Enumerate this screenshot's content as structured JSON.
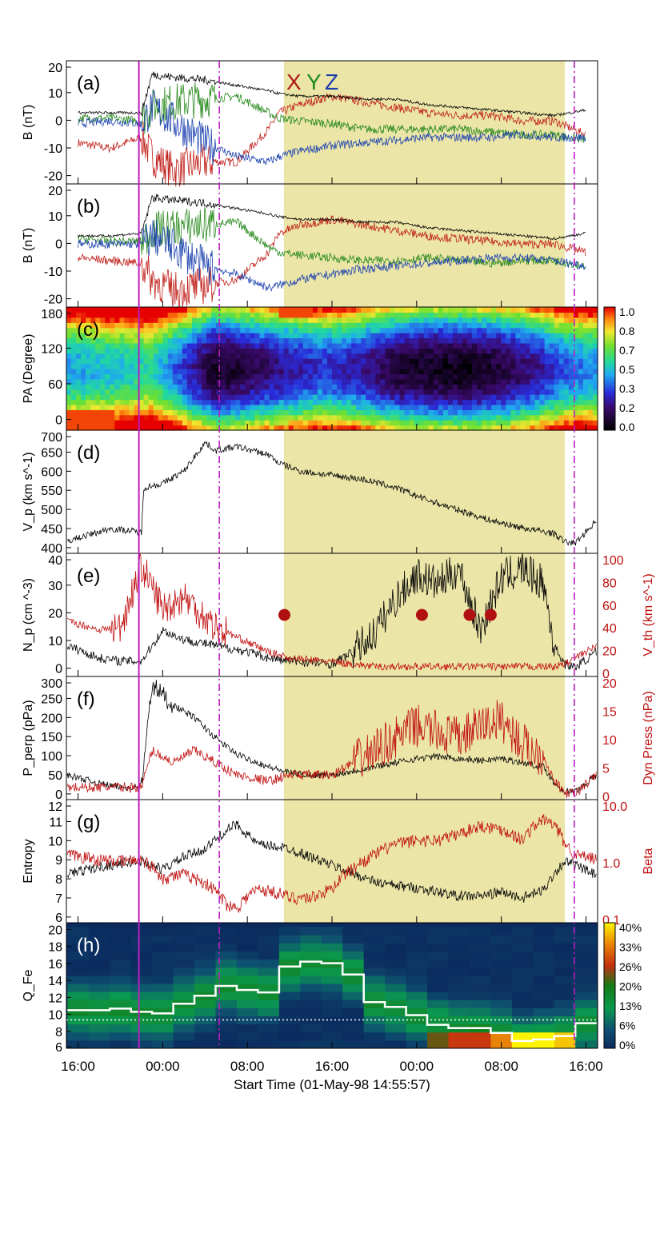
{
  "figure": {
    "header_letters": [
      {
        "text": "X",
        "color": "#b01818"
      },
      {
        "text": "Y",
        "color": "#1e8a1e"
      },
      {
        "text": "Z",
        "color": "#1a3caa"
      }
    ],
    "x_ticks": [
      "16:00",
      "00:00",
      "08:00",
      "16:00",
      "00:00",
      "08:00",
      "16:00"
    ],
    "x_label": "Start Time (01-May-98 14:55:57)",
    "colors": {
      "shade": "#ebe5a8",
      "magenta": "#b81fc2",
      "red_axis": "#c01010",
      "black": "#000000",
      "x": "#c0201a",
      "y": "#2a8a1e",
      "z": "#1f44b0",
      "dots": "#b01010",
      "step": "#ffffff",
      "qfe_bg": "#0b2a5e"
    },
    "colorbar_c_ticks": [
      "1.0",
      "0.8",
      "0.7",
      "0.5",
      "0.3",
      "0.2",
      "0.0"
    ],
    "colorbar_h_ticks": [
      "40%",
      "33%",
      "26%",
      "20%",
      "13%",
      "6%",
      "0%"
    ],
    "panels": [
      {
        "key": "a",
        "letter": "(a)",
        "ylabel": "B (nT)",
        "yticks": [
          "20",
          "10",
          "0",
          "-10",
          "-20"
        ]
      },
      {
        "key": "b",
        "letter": "(b)",
        "ylabel": "B (nT)",
        "yticks": [
          "20",
          "10",
          "0",
          "-10",
          "-20"
        ]
      },
      {
        "key": "c",
        "letter": "(c)",
        "ylabel": "PA (Degree)",
        "yticks": [
          "180",
          "120",
          "60",
          "0"
        ]
      },
      {
        "key": "d",
        "letter": "(d)",
        "ylabel": "V_p (km s^-1)",
        "yticks": [
          "700",
          "650",
          "600",
          "550",
          "500",
          "450",
          "400"
        ]
      },
      {
        "key": "e",
        "letter": "(e)",
        "ylabel": "N_p (cm ^-3)",
        "yticks": [
          "40",
          "30",
          "20",
          "10",
          "0"
        ],
        "ylabel_right": "V_th (km s^-1)",
        "yticks_right": [
          "100",
          "80",
          "60",
          "40",
          "20",
          "0"
        ]
      },
      {
        "key": "f",
        "letter": "(f)",
        "ylabel": "P_perp (pPa)",
        "yticks": [
          "300",
          "250",
          "200",
          "150",
          "100",
          "50",
          "0"
        ],
        "ylabel_right": "Dyn Press (nPa)",
        "yticks_right": [
          "20",
          "15",
          "10",
          "5",
          "0"
        ]
      },
      {
        "key": "g",
        "letter": "(g)",
        "ylabel": "Entropy",
        "yticks": [
          "12",
          "11",
          "10",
          "9",
          "8",
          "7",
          "6"
        ],
        "ylabel_right": "Beta",
        "yticks_right": [
          "10.0",
          "1.0",
          "0.1"
        ]
      },
      {
        "key": "h",
        "letter": "(h)",
        "ylabel": "Q_Fe",
        "yticks": [
          "20",
          "18",
          "16",
          "14",
          "12",
          "10",
          "8",
          "6"
        ]
      }
    ]
  },
  "chart_data": [
    {
      "panel": "a",
      "type": "line",
      "x_unit": "hours since 16:00 01-May-98",
      "xlim": [
        -1.1,
        49.1
      ],
      "ylim": [
        -20,
        25
      ],
      "series": [
        {
          "name": "X",
          "x": [
            0,
            3,
            6,
            7,
            9,
            12,
            15,
            18,
            19,
            21,
            24,
            27,
            30,
            33,
            36,
            39,
            42,
            45,
            48
          ],
          "values": [
            -5,
            -7,
            -3,
            -10,
            -15,
            -12,
            -12,
            0,
            6,
            9,
            12,
            10,
            8,
            6,
            5,
            5,
            3,
            3,
            -2
          ]
        },
        {
          "name": "Y",
          "x": [
            0,
            3,
            6,
            7,
            9,
            12,
            15,
            18,
            19,
            21,
            24,
            27,
            30,
            33,
            36,
            39,
            42,
            45,
            48
          ],
          "values": [
            4,
            4,
            3,
            8,
            10,
            11,
            12,
            6,
            4,
            3,
            2,
            0,
            0,
            0,
            0,
            -1,
            -2,
            -2,
            -4
          ]
        },
        {
          "name": "Z",
          "x": [
            0,
            3,
            6,
            7,
            9,
            12,
            15,
            18,
            19,
            21,
            24,
            27,
            30,
            33,
            36,
            39,
            42,
            45,
            48
          ],
          "values": [
            2,
            3,
            2,
            8,
            3,
            -5,
            -10,
            -12,
            -10,
            -8,
            -6,
            -5,
            -4,
            -3,
            -3,
            -3,
            -2,
            -3,
            -3
          ]
        },
        {
          "name": "|B|",
          "x": [
            0,
            3,
            6,
            7,
            9,
            12,
            15,
            18,
            19,
            21,
            24,
            27,
            30,
            33,
            36,
            39,
            42,
            45,
            48
          ],
          "values": [
            6,
            6,
            6,
            20,
            19,
            18,
            16,
            14,
            13,
            12,
            12,
            11,
            11,
            9,
            8,
            7,
            6,
            5,
            7
          ]
        }
      ]
    },
    {
      "panel": "b",
      "type": "line",
      "x_unit": "hours since 16:00 01-May-98",
      "xlim": [
        -1.1,
        49.1
      ],
      "ylim": [
        -20,
        25
      ],
      "series": [
        {
          "name": "X",
          "x": [
            0,
            3,
            6,
            7,
            9,
            12,
            15,
            18,
            19,
            21,
            24,
            27,
            30,
            33,
            36,
            39,
            42,
            45,
            48
          ],
          "values": [
            -2,
            -3,
            -4,
            -10,
            -14,
            -12,
            -10,
            0,
            7,
            10,
            12,
            10,
            8,
            6,
            5,
            4,
            3,
            3,
            0
          ]
        },
        {
          "name": "Y",
          "x": [
            0,
            3,
            6,
            7,
            9,
            12,
            15,
            18,
            19,
            21,
            24,
            27,
            30,
            33,
            36,
            39,
            42,
            45,
            48
          ],
          "values": [
            5,
            4,
            4,
            8,
            9,
            10,
            11,
            2,
            0,
            -1,
            -2,
            -3,
            -3,
            -2,
            -3,
            -4,
            -3,
            -3,
            -5
          ]
        },
        {
          "name": "Z",
          "x": [
            0,
            3,
            6,
            7,
            9,
            12,
            15,
            18,
            19,
            21,
            24,
            27,
            30,
            33,
            36,
            39,
            42,
            45,
            48
          ],
          "values": [
            3,
            3,
            3,
            6,
            2,
            -5,
            -8,
            -13,
            -12,
            -10,
            -8,
            -6,
            -5,
            -4,
            -3,
            -2,
            -2,
            -3,
            -5
          ]
        },
        {
          "name": "|B|",
          "x": [
            0,
            3,
            6,
            7,
            9,
            12,
            15,
            18,
            19,
            21,
            24,
            27,
            30,
            33,
            36,
            39,
            42,
            45,
            48
          ],
          "values": [
            6,
            6,
            7,
            20,
            19,
            18,
            16,
            14,
            13,
            12,
            12,
            11,
            11,
            9,
            8,
            7,
            6,
            5,
            7
          ]
        }
      ]
    },
    {
      "panel": "c",
      "type": "heatmap",
      "x_unit": "hours since 16:00 01-May-98",
      "xlim": [
        -1.1,
        49.1
      ],
      "ylim": [
        0,
        180
      ],
      "x": [
        0,
        4,
        7,
        10,
        13,
        15,
        19,
        23,
        26,
        30,
        34,
        37,
        40,
        43,
        46,
        48
      ],
      "description_levels": [
        0.45,
        0.5,
        0.55,
        0.3,
        0.05,
        0.1,
        0.2,
        0.3,
        0.25,
        0.1,
        0.05,
        0.05,
        0.1,
        0.2,
        0.35,
        0.4
      ]
    },
    {
      "panel": "d",
      "type": "line",
      "x_unit": "hours since 16:00 01-May-98",
      "xlim": [
        -1.1,
        49.1
      ],
      "ylim": [
        400,
        700
      ],
      "series": [
        {
          "name": "V_p",
          "x": [
            -1,
            1,
            3,
            5,
            6,
            6.2,
            8,
            10,
            12,
            13,
            15,
            18,
            19,
            21,
            24,
            27,
            30,
            33,
            36,
            39,
            42,
            45,
            46,
            47,
            49
          ],
          "values": [
            430,
            445,
            460,
            455,
            450,
            560,
            570,
            600,
            670,
            650,
            660,
            640,
            620,
            600,
            590,
            580,
            560,
            530,
            505,
            480,
            462,
            448,
            428,
            425,
            480
          ]
        }
      ]
    },
    {
      "panel": "e",
      "type": "line",
      "x_unit": "hours since 16:00 01-May-98",
      "xlim": [
        -1.1,
        49.1
      ],
      "series": [
        {
          "name": "N_p",
          "axis": "left",
          "ylim": [
            0,
            40
          ],
          "x": [
            -1,
            2,
            4,
            6,
            8,
            10,
            13,
            16,
            18,
            20,
            24,
            26,
            28,
            30,
            32,
            34,
            36,
            38,
            40,
            42,
            44,
            45,
            46,
            47,
            49
          ],
          "values": [
            10,
            6,
            5,
            5,
            15,
            12,
            10,
            8,
            6,
            5,
            4,
            8,
            14,
            25,
            33,
            30,
            35,
            15,
            32,
            35,
            30,
            10,
            4,
            3,
            8
          ]
        },
        {
          "name": "V_th",
          "axis": "right",
          "ylim": [
            0,
            100
          ],
          "x": [
            -1,
            2,
            4,
            6,
            8,
            10,
            13,
            16,
            18,
            20,
            24,
            26,
            28,
            30,
            32,
            34,
            36,
            38,
            40,
            42,
            44,
            45,
            46,
            47,
            49
          ],
          "values": [
            45,
            38,
            40,
            90,
            55,
            65,
            40,
            28,
            20,
            15,
            12,
            10,
            8,
            8,
            8,
            8,
            8,
            8,
            8,
            8,
            8,
            8,
            10,
            15,
            25
          ]
        }
      ],
      "markers": {
        "x": [
          19.5,
          32.5,
          37,
          39
        ],
        "values": [
          20,
          20,
          20,
          20
        ],
        "axis": "left"
      }
    },
    {
      "panel": "f",
      "type": "line",
      "x_unit": "hours since 16:00 01-May-98",
      "xlim": [
        -1.1,
        49.1
      ],
      "series": [
        {
          "name": "P_perp",
          "axis": "left",
          "ylim": [
            0,
            300
          ],
          "x": [
            -1,
            2,
            4,
            5,
            6,
            7,
            9,
            11,
            13,
            15,
            18,
            20,
            22,
            24,
            26,
            28,
            30,
            32,
            34,
            36,
            38,
            40,
            42,
            44,
            45,
            46,
            47,
            49
          ],
          "values": [
            60,
            40,
            30,
            30,
            35,
            280,
            230,
            200,
            150,
            110,
            80,
            65,
            60,
            60,
            70,
            80,
            90,
            100,
            105,
            100,
            95,
            100,
            90,
            80,
            40,
            20,
            20,
            60
          ]
        },
        {
          "name": "Dyn Press",
          "axis": "right",
          "ylim": [
            0,
            20
          ],
          "x": [
            -1,
            2,
            4,
            5,
            6,
            7,
            9,
            11,
            13,
            15,
            18,
            20,
            22,
            24,
            26,
            28,
            30,
            32,
            34,
            36,
            38,
            40,
            42,
            44,
            45,
            46,
            47,
            49
          ],
          "values": [
            2,
            2,
            2,
            2,
            2,
            8,
            6,
            8,
            6,
            4,
            3,
            4,
            4,
            4,
            6,
            8,
            10,
            12,
            11,
            10,
            12,
            13,
            9,
            7,
            3,
            1,
            1,
            4
          ]
        }
      ]
    },
    {
      "panel": "g",
      "type": "line",
      "x_unit": "hours since 16:00 01-May-98",
      "xlim": [
        -1.1,
        49.1
      ],
      "series": [
        {
          "name": "Entropy",
          "axis": "left",
          "ylim": [
            6,
            12
          ],
          "x": [
            -1,
            2,
            4,
            6,
            8,
            10,
            12,
            14,
            15,
            17,
            19,
            20,
            22,
            24,
            26,
            28,
            30,
            32,
            34,
            36,
            38,
            40,
            42,
            44,
            45,
            46,
            47,
            49
          ],
          "values": [
            8.4,
            8.7,
            8.9,
            9.0,
            8.6,
            9.2,
            9.6,
            10.5,
            10.8,
            9.8,
            9.7,
            9.6,
            9.2,
            8.8,
            8.4,
            8.0,
            7.8,
            7.7,
            7.5,
            7.3,
            7.3,
            7.5,
            7.2,
            7.6,
            8.4,
            9.0,
            8.8,
            8.3
          ]
        },
        {
          "name": "Beta",
          "axis": "right",
          "scale": "log",
          "ylim": [
            0.06,
            20
          ],
          "x": [
            -1,
            2,
            4,
            6,
            8,
            10,
            12,
            14,
            15,
            17,
            19,
            20,
            22,
            24,
            26,
            28,
            30,
            32,
            34,
            36,
            38,
            40,
            42,
            44,
            45,
            46,
            47,
            49
          ],
          "values": [
            1.5,
            1.2,
            1.1,
            1.2,
            0.5,
            0.6,
            0.4,
            0.15,
            0.12,
            0.3,
            0.25,
            0.2,
            0.2,
            0.3,
            0.8,
            1.5,
            2.5,
            3,
            3,
            4,
            6,
            5,
            3,
            8,
            6,
            2.5,
            1.5,
            1.2
          ]
        }
      ]
    },
    {
      "panel": "h",
      "type": "heatmap",
      "x_unit": "hours since 16:00 01-May-98",
      "xlim": [
        -1.1,
        49.1
      ],
      "ylim": [
        5.5,
        21
      ],
      "x": [
        -1,
        1,
        3,
        5,
        7,
        9,
        11,
        13,
        15,
        17,
        19,
        21,
        23,
        25,
        27,
        29,
        31,
        33,
        35,
        37,
        39,
        41,
        43,
        45,
        47,
        49
      ],
      "step_mean_charge": [
        10.2,
        10.2,
        10.4,
        10.0,
        9.8,
        11.0,
        12.0,
        13.2,
        12.7,
        12.4,
        15.6,
        16.2,
        16.0,
        14.6,
        11.2,
        10.6,
        9.6,
        8.4,
        8.0,
        8.0,
        7.4,
        6.4,
        6.6,
        7.0,
        8.6,
        9.4
      ],
      "threshold_line": 9.0
    }
  ]
}
